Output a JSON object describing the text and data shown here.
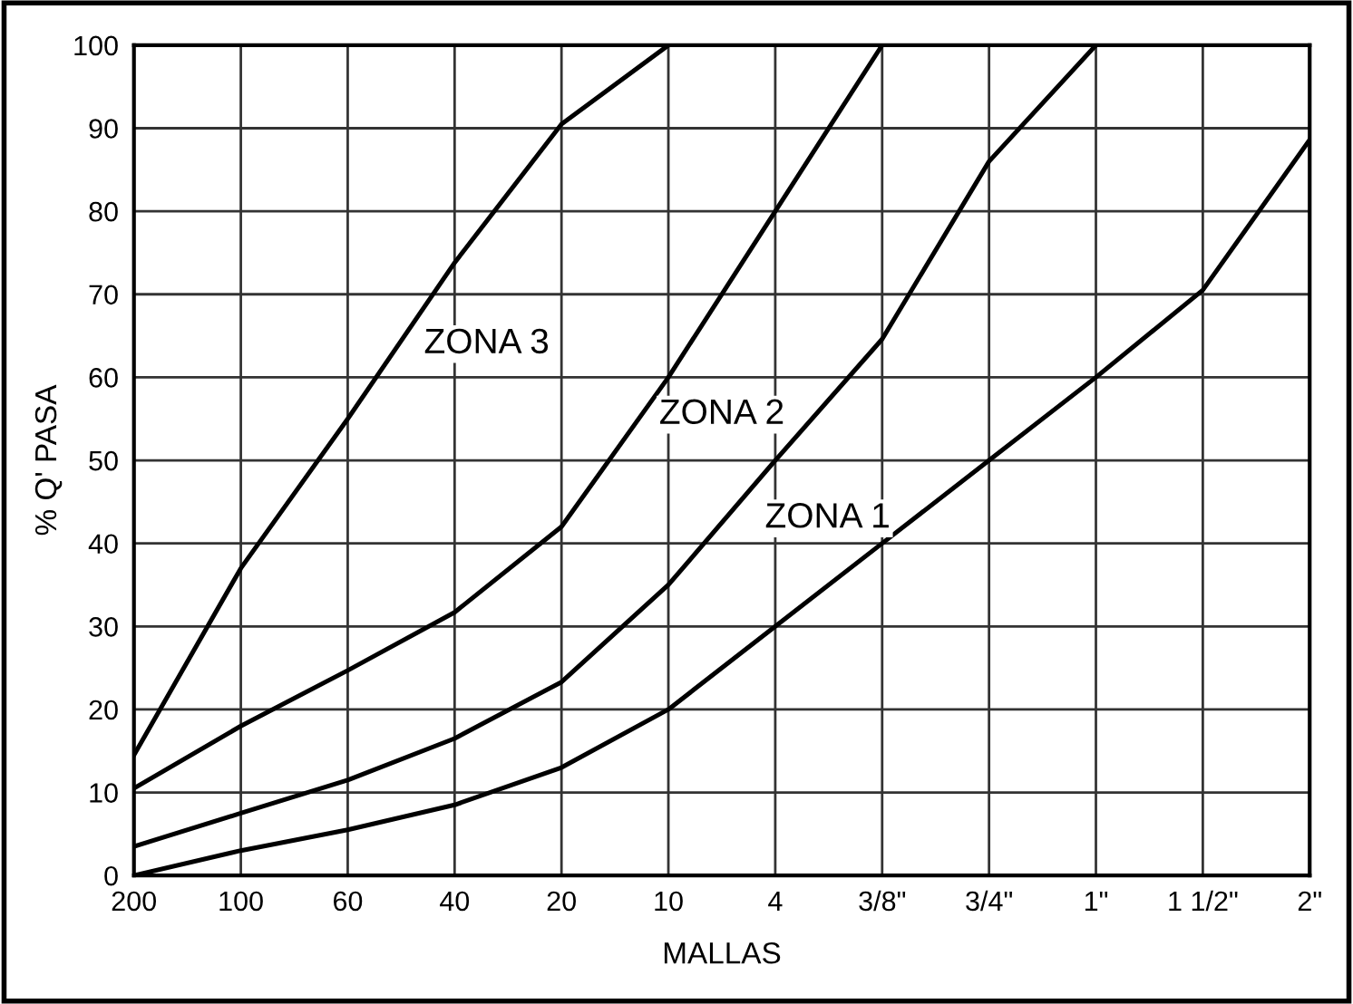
{
  "chart_data": {
    "type": "line",
    "xlabel": "MALLAS",
    "ylabel": "% Q' PASA",
    "categories": [
      "200",
      "100",
      "60",
      "40",
      "20",
      "10",
      "4",
      "3/8\"",
      "3/4\"",
      "1\"",
      "1 1/2\"",
      "2\""
    ],
    "ylim": [
      0,
      100
    ],
    "yticks": [
      0,
      10,
      20,
      30,
      40,
      50,
      60,
      70,
      80,
      90,
      100
    ],
    "grid": true,
    "marker": "none",
    "line_style": "solid",
    "series": [
      {
        "color": "#000000",
        "values": [
          14.5,
          37,
          55,
          73.8,
          90.5,
          100,
          null,
          null,
          null,
          null,
          null,
          null
        ]
      },
      {
        "color": "#000000",
        "values": [
          10.5,
          18,
          24.7,
          31.7,
          42,
          60,
          80,
          100,
          null,
          null,
          null,
          null
        ]
      },
      {
        "color": "#000000",
        "values": [
          3.5,
          7.5,
          11.5,
          16.5,
          23.3,
          35,
          50,
          64.6,
          86,
          100,
          null,
          null
        ]
      },
      {
        "color": "#000000",
        "values": [
          0,
          3,
          5.5,
          8.5,
          13,
          20,
          30,
          40,
          50,
          60,
          70.5,
          88.6
        ]
      }
    ],
    "annotations": [
      "ZONA 3",
      "ZONA 2",
      "ZONA 1"
    ]
  }
}
